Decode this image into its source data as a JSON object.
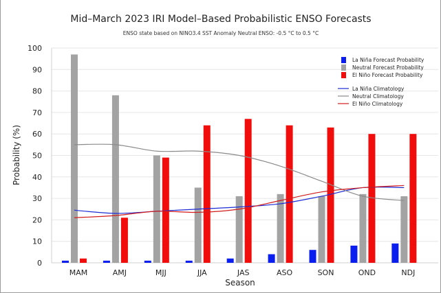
{
  "chart_data": {
    "type": "bar",
    "title": "Mid–March 2023 IRI Model–Based Probabilistic ENSO Forecasts",
    "subtitle": "ENSO state based on NINO3.4 SST Anomaly Neutral ENSO: -0.5 °C to 0.5 °C",
    "xlabel": "Season",
    "ylabel": "Probability (%)",
    "ylim": [
      0,
      100
    ],
    "yticks": [
      0,
      10,
      20,
      30,
      40,
      50,
      60,
      70,
      80,
      90,
      100
    ],
    "categories": [
      "MAM",
      "AMJ",
      "MJJ",
      "JJA",
      "JAS",
      "ASO",
      "SON",
      "OND",
      "NDJ"
    ],
    "grid": true,
    "legend_position": "top-right",
    "series": [
      {
        "name": "La Niña Forecast Probability",
        "kind": "bar",
        "color": "#0a1ef0",
        "values": [
          1,
          1,
          1,
          1,
          2,
          4,
          6,
          8,
          9
        ]
      },
      {
        "name": "Neutral Forecast Probability",
        "kind": "bar",
        "color": "#a3a3a3",
        "values": [
          97,
          78,
          50,
          35,
          31,
          32,
          31,
          32,
          31
        ]
      },
      {
        "name": "El Niño Forecast Probability",
        "kind": "bar",
        "color": "#f20d0d",
        "values": [
          2,
          21,
          49,
          64,
          67,
          64,
          63,
          60,
          60
        ]
      },
      {
        "name": "La Niña Climatology",
        "kind": "line",
        "color": "#1a2bd6",
        "values": [
          24.5,
          23,
          24,
          25,
          26,
          27.5,
          31,
          35,
          35
        ]
      },
      {
        "name": "Neutral Climatology",
        "kind": "line",
        "color": "#8a8a8a",
        "values": [
          55,
          55,
          52,
          52,
          50,
          45,
          38,
          31,
          29
        ]
      },
      {
        "name": "El Niño Climatology",
        "kind": "line",
        "color": "#d21a1a",
        "values": [
          21,
          22,
          24,
          23.5,
          25,
          29,
          33,
          35,
          36
        ]
      }
    ]
  }
}
